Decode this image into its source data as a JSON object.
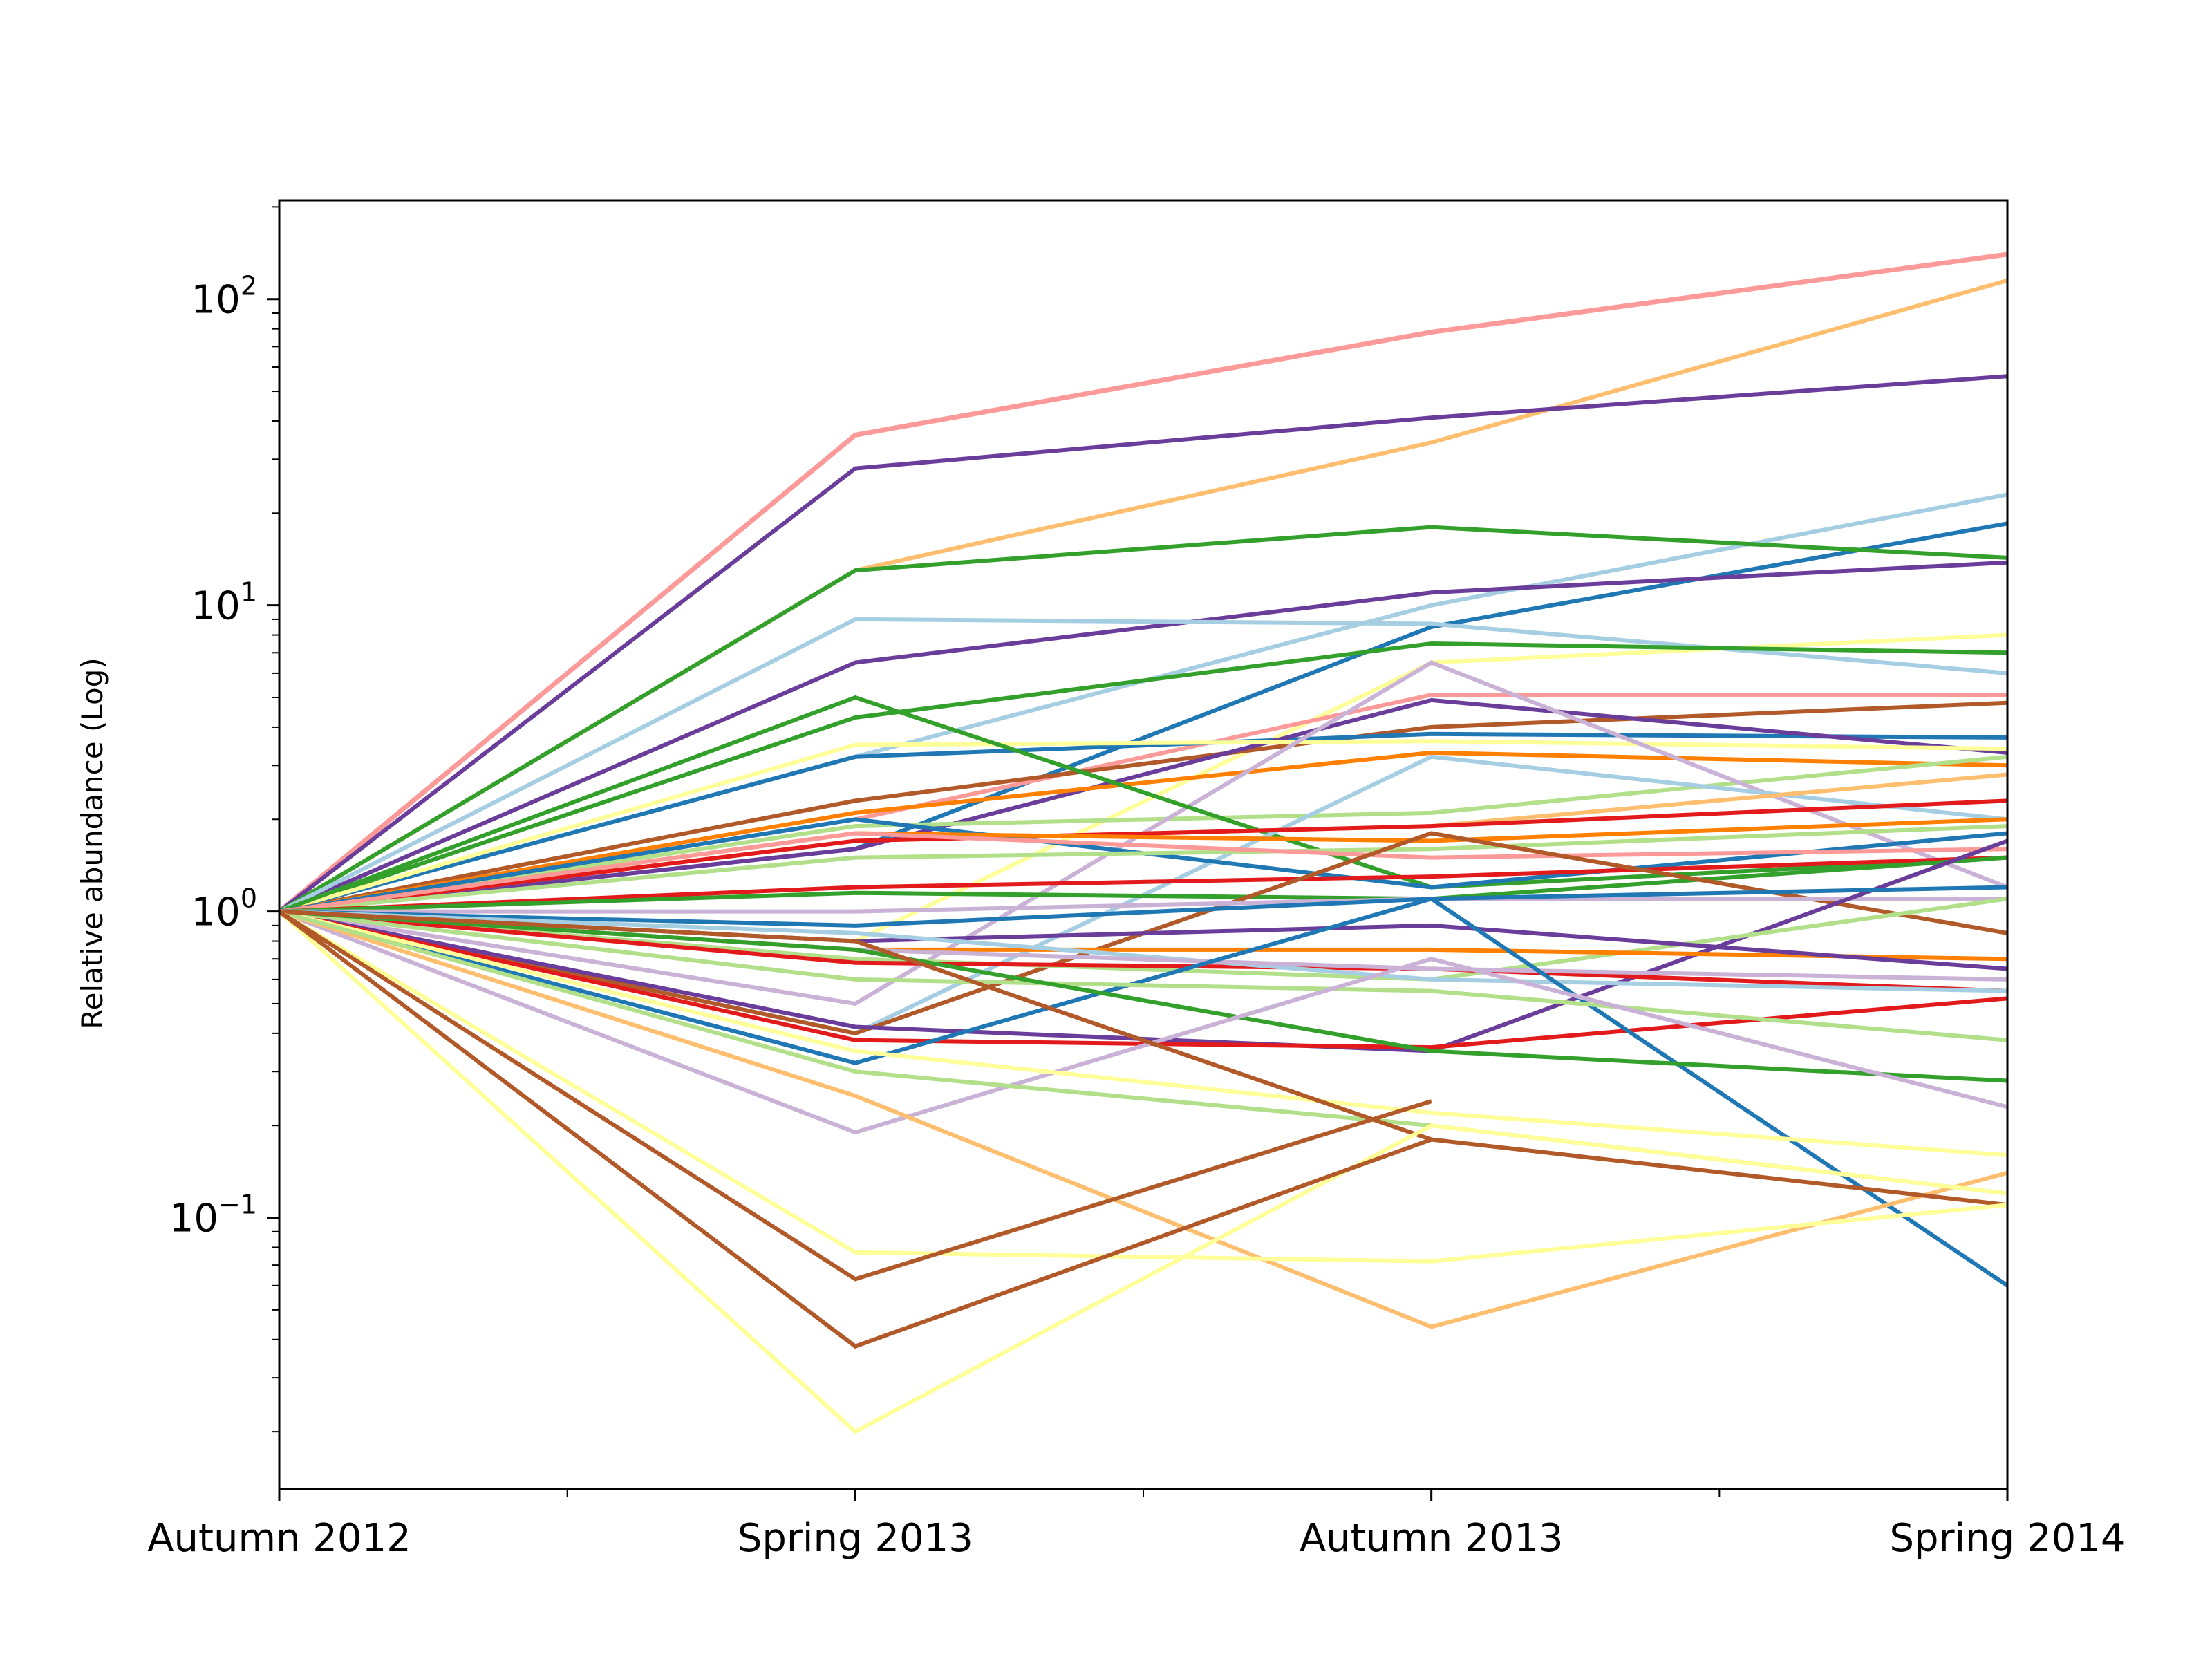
{
  "chart_data": {
    "type": "line",
    "title": "",
    "xlabel": "",
    "ylabel": "Relative abundance (Log)",
    "yscale": "log",
    "ylim": [
      0.013,
      210
    ],
    "grid": false,
    "legend": "none",
    "categories": [
      "Autumn 2012",
      "Spring 2013",
      "Autumn 2013",
      "Spring 2014"
    ],
    "yticks": [
      {
        "base": "10",
        "exp": "2",
        "value": 100
      },
      {
        "base": "10",
        "exp": "1",
        "value": 10
      },
      {
        "base": "10",
        "exp": "0",
        "value": 1
      },
      {
        "base": "10",
        "exp": "−1",
        "value": 0.1
      }
    ],
    "series": [
      {
        "color": "#fb9a99",
        "width": 7,
        "values": [
          1,
          36,
          78,
          140
        ]
      },
      {
        "color": "#fdbf6f",
        "width": 6,
        "values": [
          1,
          13,
          34,
          115
        ]
      },
      {
        "color": "#6a3d9a",
        "width": 6,
        "values": [
          1,
          28,
          41,
          56
        ]
      },
      {
        "color": "#a6cee3",
        "width": 6,
        "values": [
          1,
          3.2,
          10,
          23
        ]
      },
      {
        "color": "#1f78b4",
        "width": 6,
        "values": [
          1,
          1.6,
          8.5,
          18.5
        ]
      },
      {
        "color": "#33a02c",
        "width": 6,
        "values": [
          1,
          13,
          18,
          14.3
        ]
      },
      {
        "color": "#6a3d9a",
        "width": 6,
        "values": [
          1,
          6.5,
          11,
          13.8
        ]
      },
      {
        "color": "#a6cee3",
        "width": 6,
        "values": [
          1,
          9,
          8.7,
          6
        ]
      },
      {
        "color": "#ffff99",
        "width": 6,
        "values": [
          1,
          0.8,
          6.5,
          8
        ]
      },
      {
        "color": "#33a02c",
        "width": 6,
        "values": [
          1,
          4.3,
          7.5,
          7
        ]
      },
      {
        "color": "#fb9a99",
        "width": 6,
        "values": [
          1,
          2.0,
          5.1,
          5.1
        ]
      },
      {
        "color": "#b15928",
        "width": 6,
        "values": [
          1,
          2.3,
          4.0,
          4.8
        ]
      },
      {
        "color": "#1f78b4",
        "width": 6,
        "values": [
          1,
          3.2,
          3.8,
          3.7
        ]
      },
      {
        "color": "#6a3d9a",
        "width": 6,
        "values": [
          1,
          1.6,
          4.9,
          3.3
        ]
      },
      {
        "color": "#ffff99",
        "width": 6,
        "values": [
          1,
          3.5,
          3.6,
          3.4
        ]
      },
      {
        "color": "#ff7f00",
        "width": 6,
        "values": [
          1,
          2.1,
          3.3,
          3.0
        ]
      },
      {
        "color": "#b2df8a",
        "width": 6,
        "values": [
          1,
          1.9,
          2.1,
          3.2
        ]
      },
      {
        "color": "#cab2d6",
        "width": 6,
        "values": [
          1,
          0.5,
          6.5,
          1.2
        ]
      },
      {
        "color": "#33a02c",
        "width": 6,
        "values": [
          1,
          5.0,
          1.2,
          1.5
        ]
      },
      {
        "color": "#a6cee3",
        "width": 6,
        "values": [
          1,
          0.4,
          3.2,
          2.0
        ]
      },
      {
        "color": "#fdbf6f",
        "width": 6,
        "values": [
          1,
          1.7,
          1.9,
          2.8
        ]
      },
      {
        "color": "#e31a1c",
        "width": 6,
        "values": [
          1,
          1.7,
          1.9,
          2.3
        ]
      },
      {
        "color": "#1f78b4",
        "width": 6,
        "values": [
          1,
          2.0,
          1.2,
          1.8
        ]
      },
      {
        "color": "#ff7f00",
        "width": 6,
        "values": [
          1,
          1.8,
          1.7,
          2.0
        ]
      },
      {
        "color": "#b2df8a",
        "width": 6,
        "values": [
          1,
          1.5,
          1.6,
          1.9
        ]
      },
      {
        "color": "#fb9a99",
        "width": 6,
        "values": [
          1,
          1.8,
          1.5,
          1.6
        ]
      },
      {
        "color": "#e31a1c",
        "width": 6,
        "values": [
          1,
          1.2,
          1.3,
          1.5
        ]
      },
      {
        "color": "#33a02c",
        "width": 6,
        "values": [
          1,
          1.15,
          1.1,
          1.5
        ]
      },
      {
        "color": "#b15928",
        "width": 6,
        "values": [
          1,
          0.4,
          1.8,
          0.85
        ]
      },
      {
        "color": "#cab2d6",
        "width": 6,
        "values": [
          1,
          1.0,
          1.1,
          1.1
        ]
      },
      {
        "color": "#6a3d9a",
        "width": 6,
        "values": [
          1,
          0.42,
          0.35,
          1.7
        ]
      },
      {
        "color": "#1f78b4",
        "width": 6,
        "values": [
          1,
          0.9,
          1.1,
          1.2
        ]
      },
      {
        "color": "#b2df8a",
        "width": 6,
        "values": [
          1,
          0.7,
          0.6,
          1.1
        ]
      },
      {
        "color": "#ff7f00",
        "width": 6,
        "values": [
          1,
          0.75,
          0.75,
          0.7
        ]
      },
      {
        "color": "#6a3d9a",
        "width": 6,
        "values": [
          1,
          0.8,
          0.9,
          0.65
        ]
      },
      {
        "color": "#e31a1c",
        "width": 6,
        "values": [
          1,
          0.68,
          0.65,
          0.55
        ]
      },
      {
        "color": "#a6cee3",
        "width": 6,
        "values": [
          1,
          0.85,
          0.6,
          0.55
        ]
      },
      {
        "color": "#cab2d6",
        "width": 6,
        "values": [
          1,
          0.75,
          0.65,
          0.6
        ]
      },
      {
        "color": "#e31a1c",
        "width": 6,
        "values": [
          1,
          0.38,
          0.36,
          0.52
        ]
      },
      {
        "color": "#1f78b4",
        "width": 6,
        "values": [
          1,
          0.32,
          1.1,
          0.06
        ]
      },
      {
        "color": "#b2df8a",
        "width": 6,
        "values": [
          1,
          0.6,
          0.55,
          0.38
        ]
      },
      {
        "color": "#33a02c",
        "width": 6,
        "values": [
          1,
          0.75,
          0.35,
          0.28
        ]
      },
      {
        "color": "#cab2d6",
        "width": 6,
        "values": [
          1,
          0.19,
          0.7,
          0.23
        ]
      },
      {
        "color": "#ffff99",
        "width": 6,
        "values": [
          1,
          0.35,
          0.22,
          0.16
        ]
      },
      {
        "color": "#fdbf6f",
        "width": 6,
        "values": [
          1,
          0.25,
          0.044,
          0.14
        ]
      },
      {
        "color": "#b2df8a",
        "width": 6,
        "values": [
          1,
          0.3,
          0.2,
          0.12
        ]
      },
      {
        "color": "#b15928",
        "width": 6,
        "values": [
          1,
          0.8,
          0.18,
          0.11
        ]
      },
      {
        "color": "#ffff99",
        "width": 6,
        "values": [
          1,
          0.077,
          0.072,
          0.11
        ]
      },
      {
        "color": "#ffff99",
        "width": 6,
        "values": [
          1,
          0.02,
          0.2,
          0.12
        ]
      },
      {
        "color": "#b15928",
        "width": 6,
        "values": [
          1,
          0.063,
          0.24,
          null
        ]
      },
      {
        "color": "#b15928",
        "width": 6,
        "values": [
          1,
          0.038,
          0.18,
          null
        ]
      }
    ]
  }
}
